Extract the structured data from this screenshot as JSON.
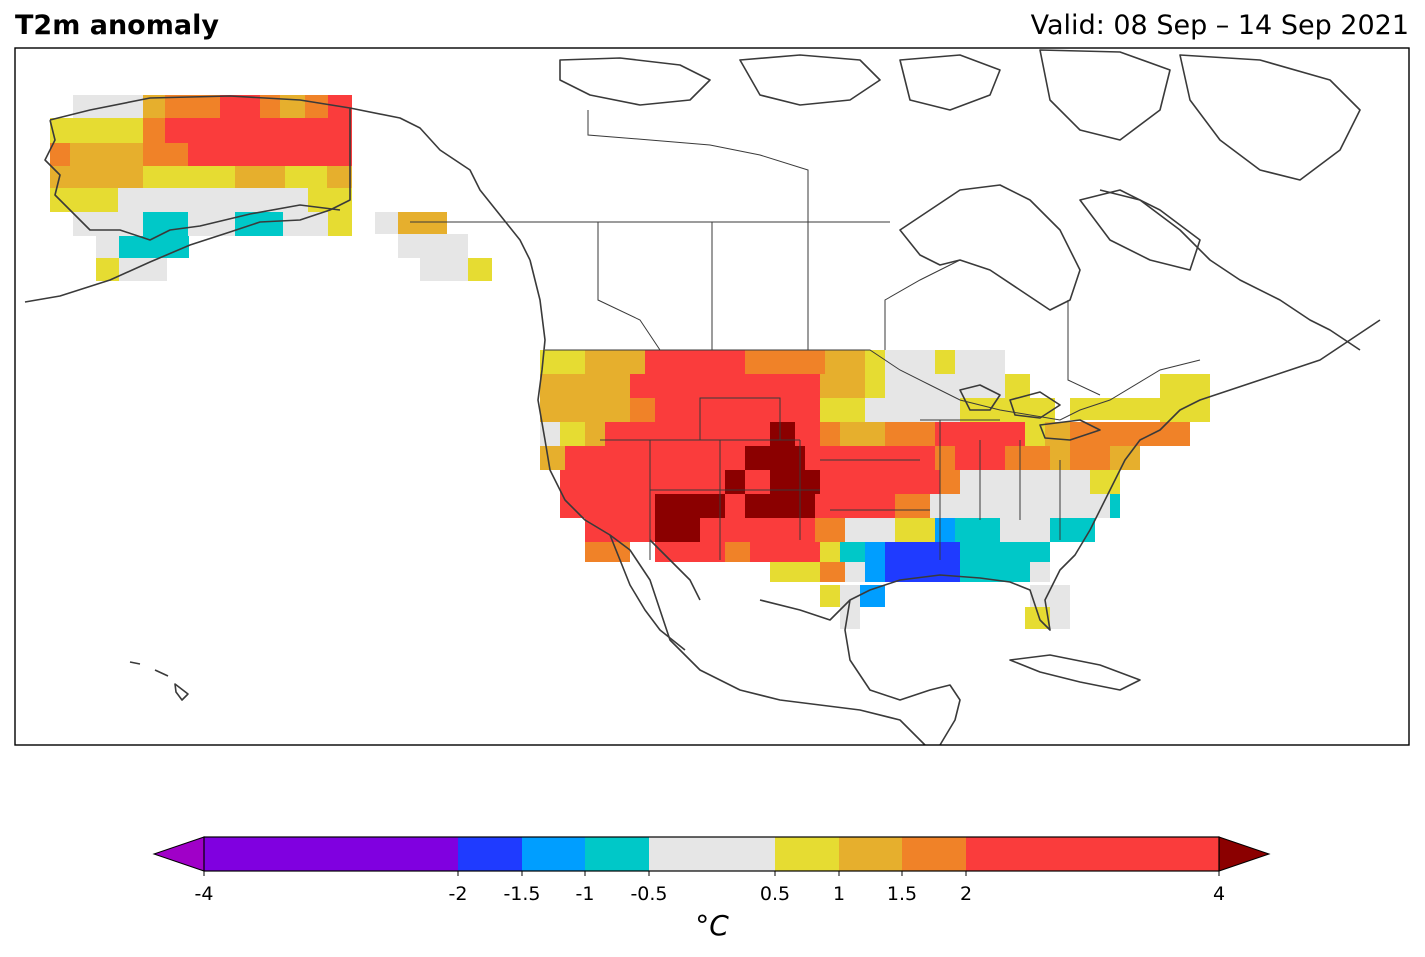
{
  "title": "T2m anomaly",
  "valid_text": "Valid: 08 Sep – 14 Sep 2021",
  "colorbar": {
    "unit_label": "°C",
    "tick_labels": [
      "-4",
      "-2",
      "-1.5",
      "-1",
      "-0.5",
      "0.5",
      "1",
      "1.5",
      "2",
      "4"
    ],
    "tick_values": [
      -4,
      -2,
      -1.5,
      -1,
      -0.5,
      0.5,
      1,
      1.5,
      2,
      4
    ],
    "bins": [
      {
        "from": -4,
        "to": -2,
        "color": "#8000e0"
      },
      {
        "from": -2,
        "to": -1.5,
        "color": "#1f3bff"
      },
      {
        "from": -1.5,
        "to": -1,
        "color": "#009eff"
      },
      {
        "from": -1,
        "to": -0.5,
        "color": "#00c8c8"
      },
      {
        "from": -0.5,
        "to": 0.5,
        "color": "#e6e6e6"
      },
      {
        "from": 0.5,
        "to": 1,
        "color": "#e6dc32"
      },
      {
        "from": 1,
        "to": 1.5,
        "color": "#e6af2d"
      },
      {
        "from": 1.5,
        "to": 2,
        "color": "#f08228"
      },
      {
        "from": 2,
        "to": 4,
        "color": "#fa3c3c"
      }
    ],
    "under_color": "#a000c8",
    "over_color": "#8b0000"
  },
  "colors": {
    "coastline": "#3a3a3a",
    "frame": "#000000",
    "background": "#ffffff"
  }
}
